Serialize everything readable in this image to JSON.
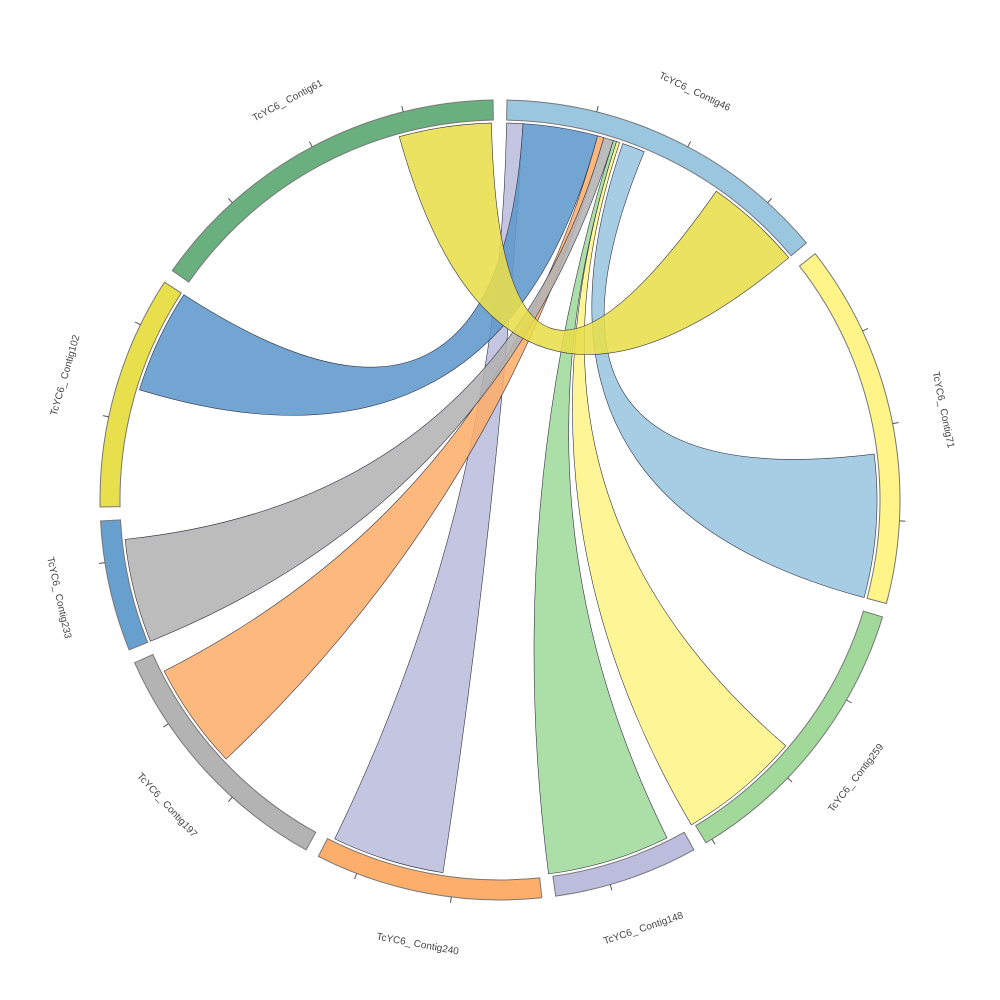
{
  "chart_data": {
    "type": "chord",
    "groups": [
      {
        "name": "TcYC6_ Contig46",
        "size": 49,
        "color": "#9ac6e0"
      },
      {
        "name": "TcYC6_ Contig71",
        "size": 53,
        "color": "#fef487"
      },
      {
        "name": "TcYC6_ Contig259",
        "size": 42,
        "color": "#a1d99b"
      },
      {
        "name": "TcYC6_ Contig148",
        "size": 21,
        "color": "#bcbddc"
      },
      {
        "name": "TcYC6_ Contig240",
        "size": 33,
        "color": "#fdae6b"
      },
      {
        "name": "TcYC6_ Contig197",
        "size": 37,
        "color": "#b3b3b3"
      },
      {
        "name": "TcYC6_ Contig233",
        "size": 19,
        "color": "#679fcf"
      },
      {
        "name": "TcYC6_ Contig102",
        "size": 34,
        "color": "#e8df4d"
      },
      {
        "name": "TcYC6_ Contig61",
        "size": 54,
        "color": "#6ab07f"
      }
    ],
    "chords": [
      {
        "source": 0,
        "source_range": [
          18,
          21.5
        ],
        "target": 1,
        "target_range": [
          31,
          53
        ],
        "color": "#9ac6e0"
      },
      {
        "source": 0,
        "source_range": [
          17,
          17.5
        ],
        "target": 2,
        "target_range": [
          23.7,
          42.5
        ],
        "color": "#fef487"
      },
      {
        "source": 0,
        "source_range": [
          16.5,
          17
        ],
        "target": 3,
        "target_range": [
          2.7,
          21.6
        ],
        "color": "#a1d99b"
      },
      {
        "source": 0,
        "source_range": [
          0,
          2.5
        ],
        "target": 4,
        "target_range": [
          14.7,
          32
        ],
        "color": "#bcbddc"
      },
      {
        "source": 0,
        "source_range": [
          14,
          15
        ],
        "target": 5,
        "target_range": [
          17.6,
          34
        ],
        "color": "#fdae6b"
      },
      {
        "source": 0,
        "source_range": [
          15,
          16.5
        ],
        "target": 6,
        "target_range": [
          0,
          16
        ],
        "color": "#b3b3b3"
      },
      {
        "source": 0,
        "source_range": [
          2.5,
          14
        ],
        "target": 7,
        "target_range": [
          18,
          34
        ],
        "color": "#5f98cb"
      },
      {
        "source": 0,
        "source_range": [
          34,
          49
        ],
        "target": 8,
        "target_range": [
          39.5,
          53.7
        ],
        "color": "#e8de4b"
      }
    ],
    "gap": 2,
    "start_angle": 1,
    "tick_step": 14
  }
}
